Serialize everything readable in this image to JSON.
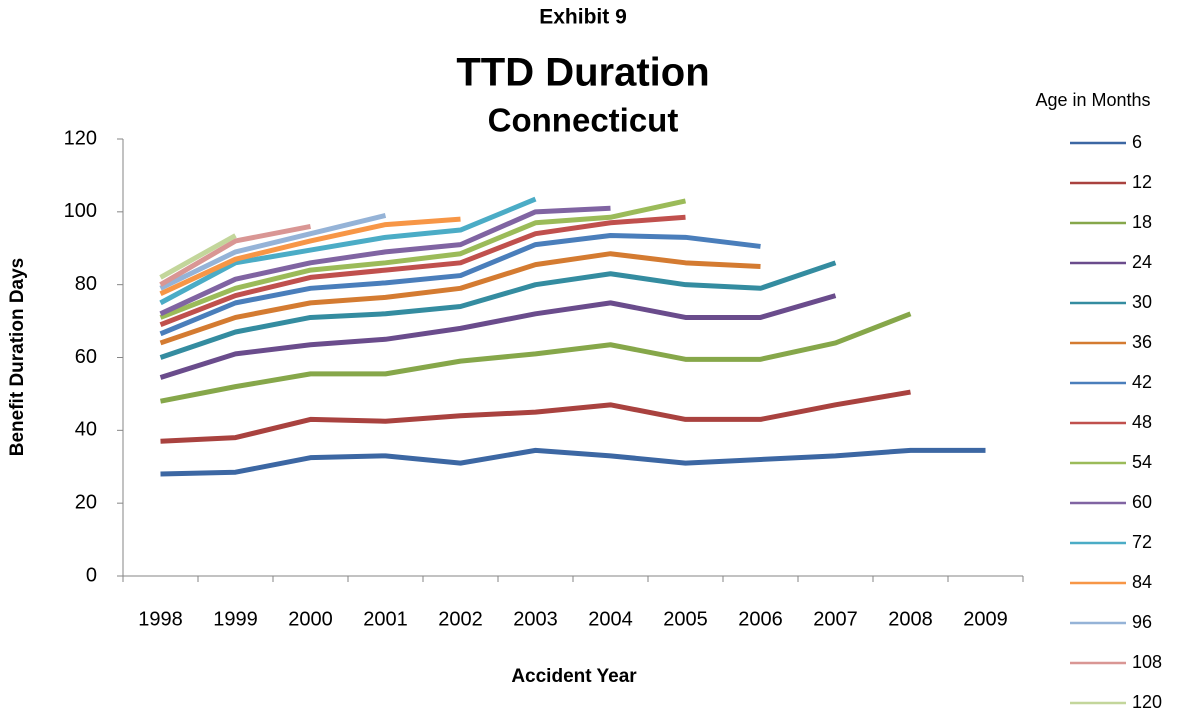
{
  "chart_data": {
    "type": "line",
    "supertitle": "Exhibit 9",
    "title": "TTD Duration",
    "subtitle": "Connecticut",
    "x_label": "Accident Year",
    "y_label": "Benefit Duration Days",
    "legend_title": "Age in Months",
    "legend": "right",
    "grid": false,
    "categories": [
      "1998",
      "1999",
      "2000",
      "2001",
      "2002",
      "2003",
      "2004",
      "2005",
      "2006",
      "2007",
      "2008",
      "2009"
    ],
    "ylim": [
      0,
      120
    ],
    "yticks": [
      0,
      20,
      40,
      60,
      80,
      100,
      120
    ],
    "series": [
      {
        "name": "6",
        "color": "#3c67a3",
        "values": [
          28,
          28.5,
          32.5,
          33,
          31,
          34.5,
          33,
          31,
          32,
          33,
          34.5,
          34.5
        ]
      },
      {
        "name": "12",
        "color": "#a9423f",
        "values": [
          37,
          38,
          43,
          42.5,
          44,
          45,
          47,
          43,
          43,
          47,
          50.5,
          null
        ]
      },
      {
        "name": "18",
        "color": "#86a74a",
        "values": [
          48,
          52,
          55.5,
          55.5,
          59,
          61,
          63.5,
          59.5,
          59.5,
          64,
          72,
          null
        ]
      },
      {
        "name": "24",
        "color": "#6a4c8c",
        "values": [
          54.5,
          61,
          63.5,
          65,
          68,
          72,
          75,
          71,
          71,
          77,
          null,
          null
        ]
      },
      {
        "name": "30",
        "color": "#348ca0",
        "values": [
          60,
          67,
          71,
          72,
          74,
          80,
          83,
          80,
          79,
          86,
          null,
          null
        ]
      },
      {
        "name": "36",
        "color": "#d47b31",
        "values": [
          64,
          71,
          75,
          76.5,
          79,
          85.5,
          88.5,
          86,
          85,
          null,
          null,
          null
        ]
      },
      {
        "name": "42",
        "color": "#4a7ebb",
        "values": [
          66.5,
          75,
          79,
          80.5,
          82.5,
          91,
          93.5,
          93,
          90.5,
          null,
          null,
          null
        ]
      },
      {
        "name": "48",
        "color": "#c0504d",
        "values": [
          69,
          77,
          82,
          84,
          86,
          94,
          97,
          98.5,
          null,
          null,
          null,
          null
        ]
      },
      {
        "name": "54",
        "color": "#9bbb59",
        "values": [
          71,
          79,
          84,
          86,
          88.5,
          97,
          98.5,
          103,
          null,
          null,
          null,
          null
        ]
      },
      {
        "name": "60",
        "color": "#8064a2",
        "values": [
          72,
          81.5,
          86,
          89,
          91,
          100,
          101,
          null,
          null,
          null,
          null,
          null
        ]
      },
      {
        "name": "72",
        "color": "#4bacc6",
        "values": [
          75,
          86,
          89.5,
          93,
          95,
          103.5,
          null,
          null,
          null,
          null,
          null,
          null
        ]
      },
      {
        "name": "84",
        "color": "#f79646",
        "values": [
          77.5,
          87,
          92,
          96.5,
          98,
          null,
          null,
          null,
          null,
          null,
          null,
          null
        ]
      },
      {
        "name": "96",
        "color": "#95b3d7",
        "values": [
          79,
          89,
          94,
          99,
          null,
          null,
          null,
          null,
          null,
          null,
          null,
          null
        ]
      },
      {
        "name": "108",
        "color": "#d99694",
        "values": [
          80,
          92,
          96,
          null,
          null,
          null,
          null,
          null,
          null,
          null,
          null,
          null
        ]
      },
      {
        "name": "120",
        "color": "#c3d69b",
        "values": [
          82,
          93.5,
          null,
          null,
          null,
          null,
          null,
          null,
          null,
          null,
          null,
          null
        ]
      }
    ]
  }
}
